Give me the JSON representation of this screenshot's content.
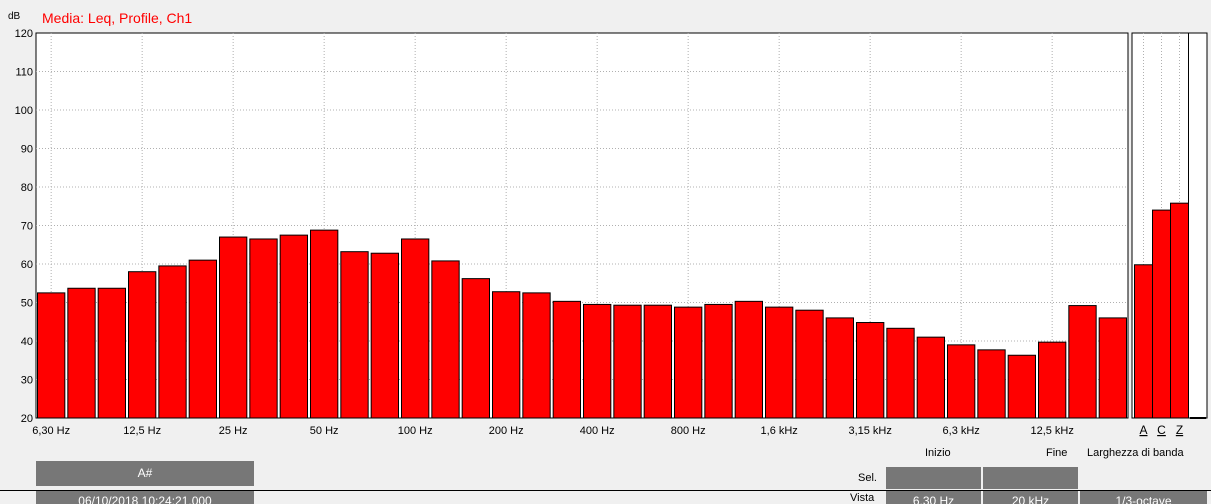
{
  "chart_data": {
    "type": "bar",
    "title": "Media: Leq, Profile, Ch1",
    "ylabel": "dB",
    "ylim": [
      20,
      120
    ],
    "yticks": [
      "20",
      "30",
      "40",
      "50",
      "60",
      "70",
      "80",
      "90",
      "100",
      "110",
      "120"
    ],
    "grid": true,
    "values": [
      52.5,
      53.7,
      53.7,
      58.0,
      59.5,
      61.0,
      67.0,
      66.5,
      67.5,
      68.8,
      63.2,
      62.8,
      66.5,
      60.8,
      56.2,
      52.8,
      52.5,
      50.3,
      49.5,
      49.3,
      49.3,
      48.8,
      49.5,
      50.3,
      48.8,
      48.0,
      46.0,
      44.8,
      43.3,
      41.0,
      39.0,
      37.7,
      36.3,
      39.7,
      49.2,
      46.0
    ],
    "xtick_labels": [
      {
        "bar": 0,
        "label": "6,30 Hz"
      },
      {
        "bar": 3,
        "label": "12,5 Hz"
      },
      {
        "bar": 6,
        "label": "25 Hz"
      },
      {
        "bar": 9,
        "label": "50 Hz"
      },
      {
        "bar": 12,
        "label": "100 Hz"
      },
      {
        "bar": 15,
        "label": "200 Hz"
      },
      {
        "bar": 18,
        "label": "400 Hz"
      },
      {
        "bar": 21,
        "label": "800 Hz"
      },
      {
        "bar": 24,
        "label": "1,6 kHz"
      },
      {
        "bar": 27,
        "label": "3,15 kHz"
      },
      {
        "bar": 30,
        "label": "6,3 kHz"
      },
      {
        "bar": 33,
        "label": "12,5 kHz"
      }
    ],
    "weighted": {
      "categories": [
        "A",
        "C",
        "Z"
      ],
      "values": [
        59.8,
        74.0,
        75.8
      ]
    },
    "bar_color": "#ff0000"
  },
  "panel": {
    "cursor_header": "A#",
    "timestamp": "06/10/2018 10:24:21.000",
    "col_inizio": "Inizio",
    "col_fine": "Fine",
    "col_banda": "Larghezza di banda",
    "row_sel": "Sel.",
    "row_vista": "Vista",
    "vista_inizio": "6,30 Hz",
    "vista_fine": "20 kHz",
    "vista_banda": "1/3-octave"
  }
}
